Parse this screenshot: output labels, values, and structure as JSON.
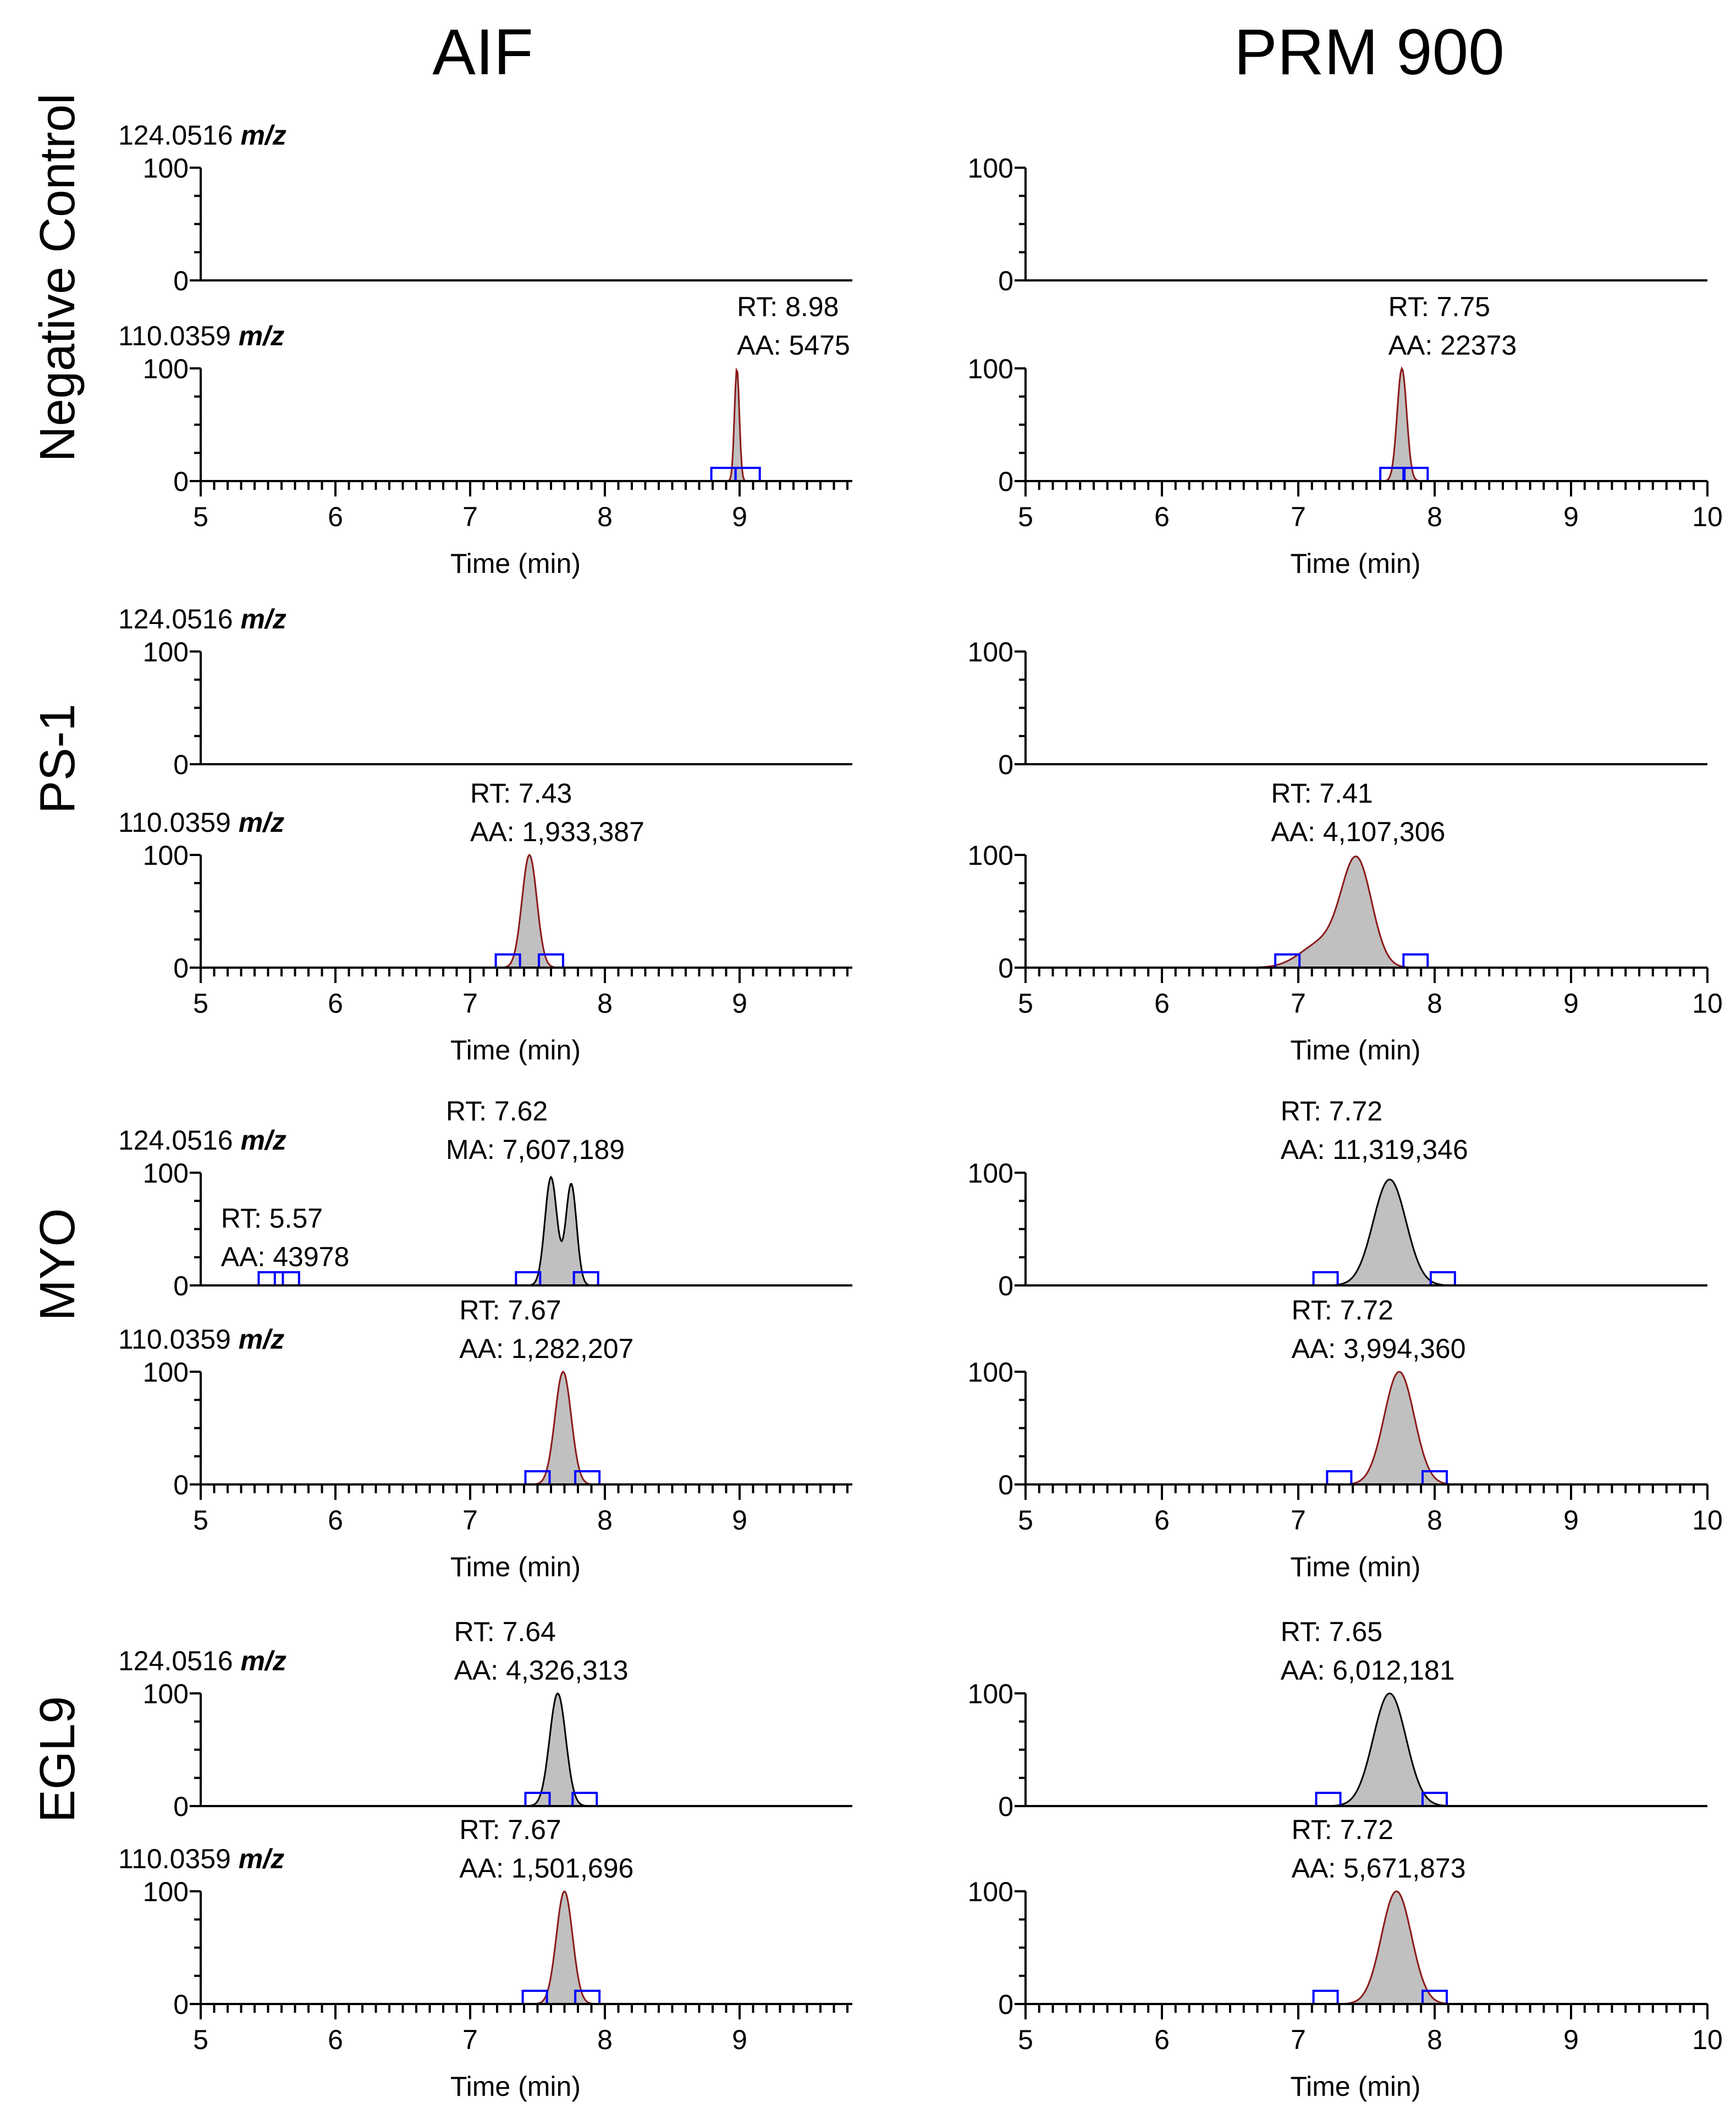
{
  "columns": [
    "AIF",
    "PRM 900"
  ],
  "samples": [
    "Negative Control",
    "PS-1",
    "MYO",
    "EGL9"
  ],
  "mz_unit": "m/z",
  "axis": {
    "xlabel": "Time (min)",
    "ytick_top": "100",
    "ytick_bottom": "0"
  },
  "colors": {
    "peak_fill": "#c0c0c0",
    "trace_red": "#8b1a1a",
    "trace_black": "#000000",
    "marker": "#0000ff"
  },
  "chart_data": [
    {
      "type": "area",
      "column": "AIF",
      "sample": "Negative Control",
      "mz": "124.0516",
      "empty": true,
      "xlim": [
        5,
        9.83
      ],
      "ylim": [
        0,
        100
      ],
      "xticks": [
        5,
        6,
        7,
        8,
        9
      ],
      "show_x_axis": false,
      "mz_label": true,
      "peaks": []
    },
    {
      "type": "area",
      "column": "AIF",
      "sample": "Negative Control",
      "mz": "110.0359",
      "xlim": [
        5,
        9.83
      ],
      "ylim": [
        0,
        100
      ],
      "xticks": [
        5,
        6,
        7,
        8,
        9
      ],
      "show_x_axis": true,
      "mz_label": true,
      "line_color": "red",
      "peaks": [
        {
          "center": 8.98,
          "sigma": 0.018,
          "height": 100,
          "bounds": [
            8.88,
            9.06
          ]
        }
      ],
      "annotations": [
        {
          "rt_label": "RT: 8.98",
          "area_label": "AA: 5475",
          "x": 8.98
        }
      ]
    },
    {
      "type": "area",
      "column": "PRM 900",
      "sample": "Negative Control",
      "mz": "124.0516",
      "empty": true,
      "xlim": [
        5,
        10
      ],
      "ylim": [
        0,
        100
      ],
      "xticks": [
        5,
        6,
        7,
        8,
        9,
        10
      ],
      "show_x_axis": false,
      "mz_label": false,
      "peaks": []
    },
    {
      "type": "area",
      "column": "PRM 900",
      "sample": "Negative Control",
      "mz": "110.0359",
      "xlim": [
        5,
        10
      ],
      "ylim": [
        0,
        100
      ],
      "xticks": [
        5,
        6,
        7,
        8,
        9,
        10
      ],
      "show_x_axis": true,
      "mz_label": false,
      "line_color": "red",
      "peaks": [
        {
          "center": 7.76,
          "sigma": 0.035,
          "height": 100,
          "bounds": [
            7.69,
            7.86
          ]
        }
      ],
      "annotations": [
        {
          "rt_label": "RT: 7.75",
          "area_label": "AA: 22373",
          "x": 7.66
        }
      ]
    },
    {
      "type": "area",
      "column": "AIF",
      "sample": "PS-1",
      "mz": "124.0516",
      "empty": true,
      "xlim": [
        5,
        9.83
      ],
      "ylim": [
        0,
        100
      ],
      "xticks": [
        5,
        6,
        7,
        8,
        9
      ],
      "show_x_axis": false,
      "mz_label": true,
      "peaks": []
    },
    {
      "type": "area",
      "column": "AIF",
      "sample": "PS-1",
      "mz": "110.0359",
      "xlim": [
        5,
        9.83
      ],
      "ylim": [
        0,
        100
      ],
      "xticks": [
        5,
        6,
        7,
        8,
        9
      ],
      "show_x_axis": true,
      "mz_label": true,
      "line_color": "red",
      "peaks": [
        {
          "center": 7.44,
          "sigma": 0.055,
          "height": 100,
          "bounds": [
            7.28,
            7.6
          ]
        }
      ],
      "annotations": [
        {
          "rt_label": "RT: 7.43",
          "area_label": "AA: 1,933,387",
          "x": 7.0
        }
      ]
    },
    {
      "type": "area",
      "column": "PRM 900",
      "sample": "PS-1",
      "mz": "124.0516",
      "empty": true,
      "xlim": [
        5,
        10
      ],
      "ylim": [
        0,
        100
      ],
      "xticks": [
        5,
        6,
        7,
        8,
        9,
        10
      ],
      "show_x_axis": false,
      "mz_label": false,
      "peaks": []
    },
    {
      "type": "area",
      "column": "PRM 900",
      "sample": "PS-1",
      "mz": "110.0359",
      "xlim": [
        5,
        10
      ],
      "ylim": [
        0,
        100
      ],
      "xticks": [
        5,
        6,
        7,
        8,
        9,
        10
      ],
      "show_x_axis": true,
      "mz_label": false,
      "line_color": "red",
      "peaks": [
        {
          "center": 7.43,
          "sigma": 0.11,
          "height": 92,
          "bounds": [
            6.92,
            7.86
          ]
        },
        {
          "center": 7.18,
          "sigma": 0.16,
          "height": 22
        }
      ],
      "annotations": [
        {
          "rt_label": "RT: 7.41",
          "area_label": "AA: 4,107,306",
          "x": 6.8
        }
      ]
    },
    {
      "type": "area",
      "column": "AIF",
      "sample": "MYO",
      "mz": "124.0516",
      "xlim": [
        5,
        9.83
      ],
      "ylim": [
        0,
        100
      ],
      "xticks": [
        5,
        6,
        7,
        8,
        9
      ],
      "show_x_axis": false,
      "mz_label": true,
      "line_color": "black",
      "peaks": [
        {
          "center": 7.6,
          "sigma": 0.045,
          "height": 96,
          "bounds": [
            7.43,
            7.86
          ]
        },
        {
          "center": 7.75,
          "sigma": 0.04,
          "height": 90
        }
      ],
      "annotations": [
        {
          "rt_label": "RT: 7.62",
          "area_label": "MA: 7,607,189",
          "x": 6.82
        },
        {
          "rt_label": "RT: 5.57",
          "area_label": "AA: 43978",
          "x": 5.15,
          "low": true
        }
      ],
      "extra_bounds": [
        5.52,
        5.64
      ]
    },
    {
      "type": "area",
      "column": "AIF",
      "sample": "MYO",
      "mz": "110.0359",
      "xlim": [
        5,
        9.83
      ],
      "ylim": [
        0,
        100
      ],
      "xticks": [
        5,
        6,
        7,
        8,
        9
      ],
      "show_x_axis": true,
      "mz_label": true,
      "line_color": "red",
      "peaks": [
        {
          "center": 7.69,
          "sigma": 0.06,
          "height": 100,
          "bounds": [
            7.5,
            7.87
          ]
        }
      ],
      "annotations": [
        {
          "rt_label": "RT: 7.67",
          "area_label": "AA: 1,282,207",
          "x": 6.92
        }
      ]
    },
    {
      "type": "area",
      "column": "PRM 900",
      "sample": "MYO",
      "mz": "124.0516",
      "xlim": [
        5,
        10
      ],
      "ylim": [
        0,
        100
      ],
      "xticks": [
        5,
        6,
        7,
        8,
        9,
        10
      ],
      "show_x_axis": false,
      "mz_label": false,
      "line_color": "black",
      "peaks": [
        {
          "center": 7.67,
          "sigma": 0.12,
          "height": 94,
          "bounds": [
            7.2,
            8.06
          ]
        }
      ],
      "annotations": [
        {
          "rt_label": "RT: 7.72",
          "area_label": "AA: 11,319,346",
          "x": 6.87
        }
      ]
    },
    {
      "type": "area",
      "column": "PRM 900",
      "sample": "MYO",
      "mz": "110.0359",
      "xlim": [
        5,
        10
      ],
      "ylim": [
        0,
        100
      ],
      "xticks": [
        5,
        6,
        7,
        8,
        9,
        10
      ],
      "show_x_axis": true,
      "mz_label": false,
      "line_color": "red",
      "peaks": [
        {
          "center": 7.74,
          "sigma": 0.11,
          "height": 100,
          "bounds": [
            7.3,
            8.0
          ]
        }
      ],
      "annotations": [
        {
          "rt_label": "RT: 7.72",
          "area_label": "AA: 3,994,360",
          "x": 6.95
        }
      ]
    },
    {
      "type": "area",
      "column": "AIF",
      "sample": "EGL9",
      "mz": "124.0516",
      "xlim": [
        5,
        9.83
      ],
      "ylim": [
        0,
        100
      ],
      "xticks": [
        5,
        6,
        7,
        8,
        9
      ],
      "show_x_axis": false,
      "mz_label": true,
      "line_color": "black",
      "peaks": [
        {
          "center": 7.65,
          "sigma": 0.06,
          "height": 100,
          "bounds": [
            7.5,
            7.85
          ]
        }
      ],
      "annotations": [
        {
          "rt_label": "RT: 7.64",
          "area_label": "AA: 4,326,313",
          "x": 6.88
        }
      ]
    },
    {
      "type": "area",
      "column": "AIF",
      "sample": "EGL9",
      "mz": "110.0359",
      "xlim": [
        5,
        9.83
      ],
      "ylim": [
        0,
        100
      ],
      "xticks": [
        5,
        6,
        7,
        8,
        9
      ],
      "show_x_axis": true,
      "mz_label": true,
      "line_color": "red",
      "peaks": [
        {
          "center": 7.7,
          "sigma": 0.06,
          "height": 100,
          "bounds": [
            7.48,
            7.87
          ]
        }
      ],
      "annotations": [
        {
          "rt_label": "RT: 7.67",
          "area_label": "AA: 1,501,696",
          "x": 6.92
        }
      ]
    },
    {
      "type": "area",
      "column": "PRM 900",
      "sample": "EGL9",
      "mz": "124.0516",
      "xlim": [
        5,
        10
      ],
      "ylim": [
        0,
        100
      ],
      "xticks": [
        5,
        6,
        7,
        8,
        9,
        10
      ],
      "show_x_axis": false,
      "mz_label": false,
      "line_color": "black",
      "peaks": [
        {
          "center": 7.67,
          "sigma": 0.12,
          "height": 100,
          "bounds": [
            7.22,
            8.0
          ]
        }
      ],
      "annotations": [
        {
          "rt_label": "RT: 7.65",
          "area_label": "AA: 6,012,181",
          "x": 6.87
        }
      ]
    },
    {
      "type": "area",
      "column": "PRM 900",
      "sample": "EGL9",
      "mz": "110.0359",
      "xlim": [
        5,
        10
      ],
      "ylim": [
        0,
        100
      ],
      "xticks": [
        5,
        6,
        7,
        8,
        9,
        10
      ],
      "show_x_axis": true,
      "mz_label": false,
      "line_color": "red",
      "peaks": [
        {
          "center": 7.72,
          "sigma": 0.11,
          "height": 100,
          "bounds": [
            7.2,
            8.0
          ]
        }
      ],
      "annotations": [
        {
          "rt_label": "RT: 7.72",
          "area_label": "AA: 5,671,873",
          "x": 6.95
        }
      ]
    }
  ]
}
